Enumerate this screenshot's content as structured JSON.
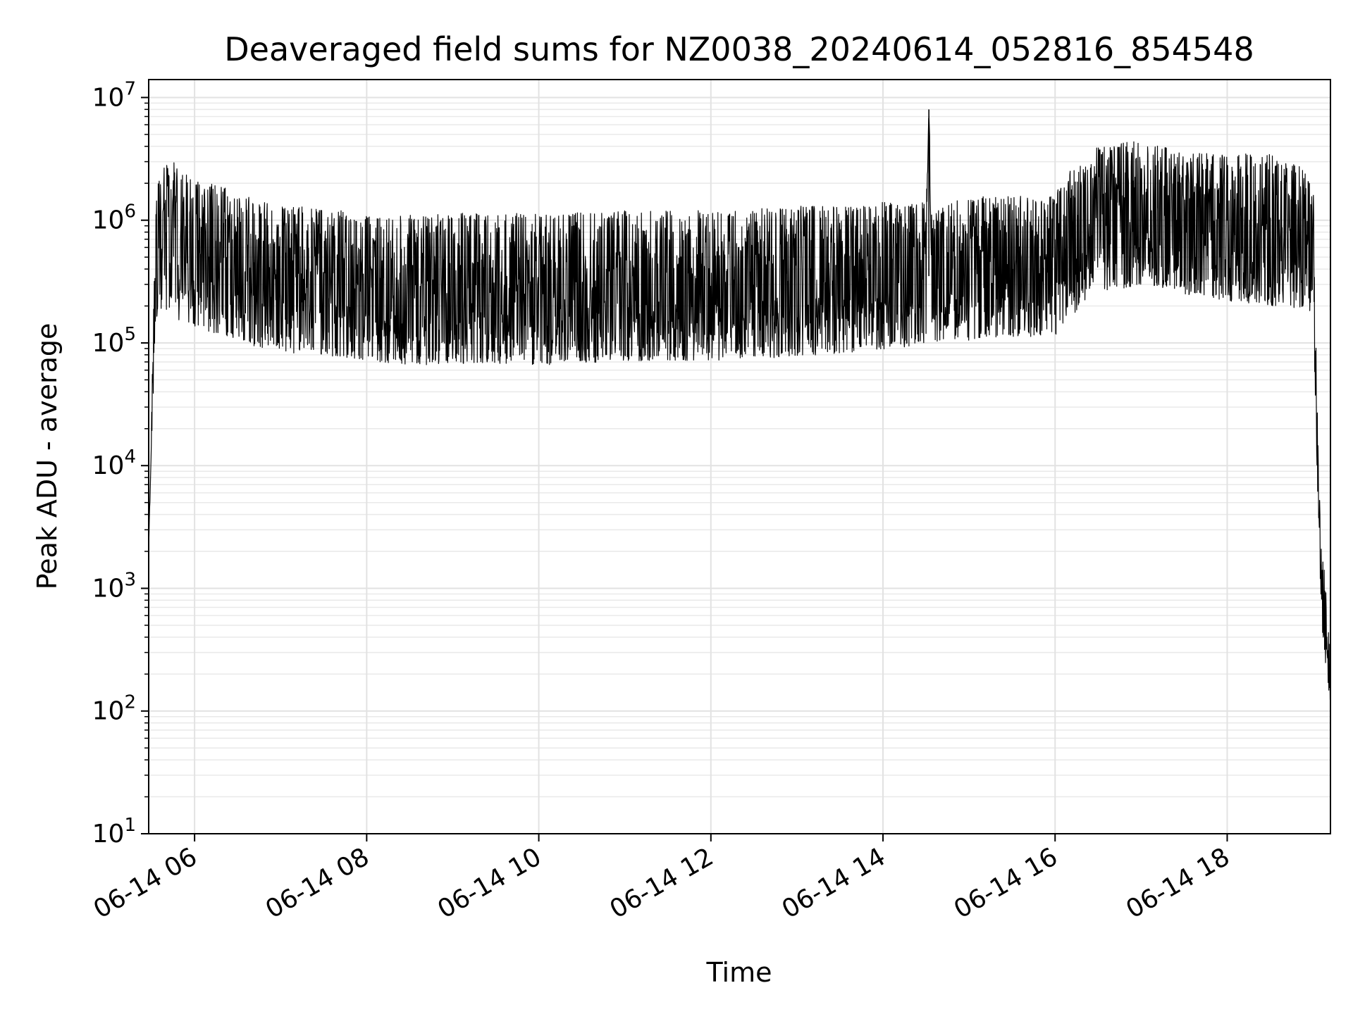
{
  "chart_data": {
    "type": "line",
    "title": "Deaveraged field sums for NZ0038_20240614_052816_854548",
    "xlabel": "Time",
    "ylabel": "Peak ADU - average",
    "yscale": "log",
    "ylim": [
      10,
      14000000
    ],
    "xlim": [
      "06-14 05:28",
      "06-14 19:12"
    ],
    "grid": "on (major and minor)",
    "line_color": "#000000",
    "x_ticks": [
      {
        "label": "06-14 06",
        "value": "06-14 06:00"
      },
      {
        "label": "06-14 08",
        "value": "06-14 08:00"
      },
      {
        "label": "06-14 10",
        "value": "06-14 10:00"
      },
      {
        "label": "06-14 12",
        "value": "06-14 12:00"
      },
      {
        "label": "06-14 14",
        "value": "06-14 14:00"
      },
      {
        "label": "06-14 16",
        "value": "06-14 16:00"
      },
      {
        "label": "06-14 18",
        "value": "06-14 18:00"
      }
    ],
    "y_ticks": [
      {
        "base": "10",
        "exp": "1",
        "value": 10
      },
      {
        "base": "10",
        "exp": "2",
        "value": 100
      },
      {
        "base": "10",
        "exp": "3",
        "value": 1000
      },
      {
        "base": "10",
        "exp": "4",
        "value": 10000
      },
      {
        "base": "10",
        "exp": "5",
        "value": 100000
      },
      {
        "base": "10",
        "exp": "6",
        "value": 1000000
      },
      {
        "base": "10",
        "exp": "7",
        "value": 10000000
      }
    ],
    "series": [
      {
        "x": [
          "06-14 05:28",
          "06-14 05:30",
          "06-14 05:33",
          "06-14 05:36",
          "06-14 05:40",
          "06-14 05:45",
          "06-14 05:50",
          "06-14 05:55",
          "06-14 06:00",
          "06-14 06:10",
          "06-14 06:20",
          "06-14 06:30",
          "06-14 06:40",
          "06-14 06:50",
          "06-14 07:00",
          "06-14 07:15",
          "06-14 07:30",
          "06-14 07:45",
          "06-14 08:00",
          "06-14 08:15",
          "06-14 08:30",
          "06-14 08:45",
          "06-14 09:00",
          "06-14 09:30",
          "06-14 10:00",
          "06-14 10:30",
          "06-14 11:00",
          "06-14 11:30",
          "06-14 12:00",
          "06-14 12:30",
          "06-14 13:00",
          "06-14 13:30",
          "06-14 14:00",
          "06-14 14:30",
          "06-14 14:32",
          "06-14 14:34",
          "06-14 15:00",
          "06-14 15:30",
          "06-14 16:00",
          "06-14 16:15",
          "06-14 16:30",
          "06-14 17:00",
          "06-14 17:30",
          "06-14 18:00",
          "06-14 18:30",
          "06-14 18:50",
          "06-14 19:00",
          "06-14 19:02",
          "06-14 19:04",
          "06-14 19:06",
          "06-14 19:08",
          "06-14 19:10",
          "06-14 19:12"
        ],
        "y": [
          2000,
          20000,
          400000,
          800000,
          700000,
          600000,
          550000,
          500000,
          450000,
          400000,
          420000,
          380000,
          350000,
          330000,
          300000,
          280000,
          270000,
          250000,
          220000,
          200000,
          180000,
          200000,
          220000,
          210000,
          200000,
          220000,
          230000,
          240000,
          230000,
          250000,
          270000,
          290000,
          320000,
          350000,
          8000000,
          380000,
          400000,
          420000,
          450000,
          700000,
          900000,
          1000000,
          800000,
          700000,
          650000,
          600000,
          550000,
          50000,
          5000,
          1000,
          600,
          300,
          150
        ],
        "band_hi": [
          2000,
          30000,
          1500000,
          2500000,
          2800000,
          3000000,
          2800000,
          2500000,
          2200000,
          2000000,
          1900000,
          1700000,
          1500000,
          1400000,
          1300000,
          1300000,
          1200000,
          1200000,
          1100000,
          1100000,
          1100000,
          1100000,
          1150000,
          1150000,
          1150000,
          1150000,
          1200000,
          1200000,
          1200000,
          1250000,
          1300000,
          1350000,
          1400000,
          1450000,
          8000000,
          1500000,
          1550000,
          1600000,
          1700000,
          3000000,
          4000000,
          4500000,
          3500000,
          3500000,
          3500000,
          2800000,
          2000000,
          100000,
          8000,
          2000,
          1500,
          800,
          300
        ],
        "band_lo": [
          2000,
          15000,
          150000,
          180000,
          170000,
          160000,
          150000,
          140000,
          130000,
          120000,
          110000,
          100000,
          95000,
          90000,
          85000,
          80000,
          78000,
          75000,
          70000,
          68000,
          65000,
          66000,
          68000,
          67000,
          66000,
          68000,
          70000,
          72000,
          70000,
          74000,
          78000,
          82000,
          88000,
          95000,
          8000000,
          100000,
          105000,
          110000,
          115000,
          180000,
          250000,
          300000,
          250000,
          220000,
          200000,
          190000,
          170000,
          20000,
          2000,
          500,
          250,
          120,
          110
        ]
      }
    ]
  }
}
